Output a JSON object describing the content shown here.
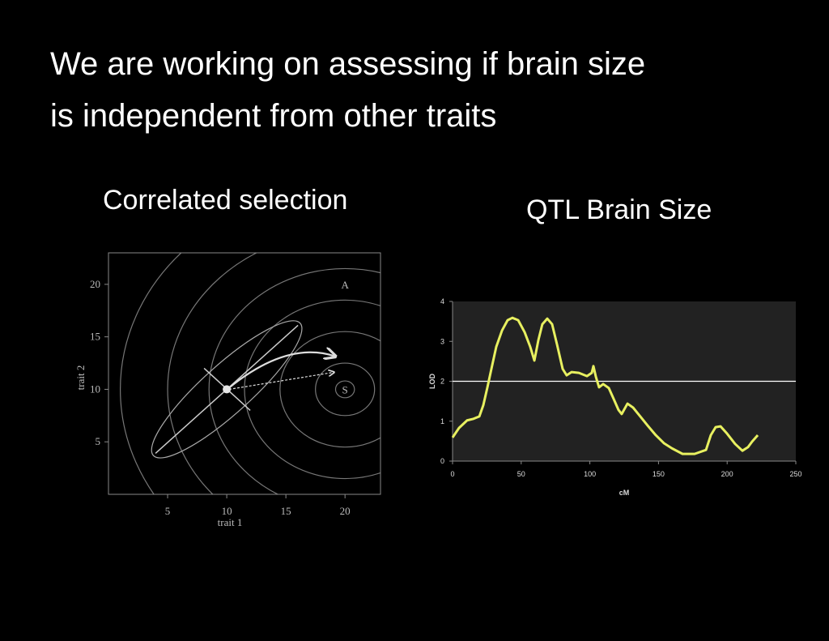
{
  "slide": {
    "title_lines": [
      "We are working on assessing if brain size",
      "is independent from other traits"
    ]
  },
  "chart_data": [
    {
      "type": "scatter",
      "title": "Correlated selection",
      "x_label": "trait 1",
      "y_label": "trait 2",
      "x": [
        10
      ],
      "values": [
        10
      ],
      "color": "#e6e6e6",
      "xlim": [
        0,
        23
      ],
      "ylim": [
        0,
        23
      ],
      "xticks": [
        5,
        10,
        15,
        20
      ],
      "yticks": [
        5,
        10,
        15,
        20
      ],
      "contour_center": [
        20,
        10
      ],
      "contours": [
        0.8,
        2.5,
        5.5,
        8.5,
        11.5,
        15,
        19
      ],
      "annotations": [
        {
          "text": "S",
          "x": 20,
          "y": 10
        },
        {
          "text": "A",
          "x": 20,
          "y": 20
        }
      ]
    },
    {
      "type": "line",
      "title": "QTL Brain Size",
      "x_label": "cM",
      "y_label": "LOD",
      "color": "#e8f060",
      "xlim": [
        0,
        250
      ],
      "ylim": [
        0,
        4
      ],
      "xticks": [
        0,
        50,
        100,
        150,
        200,
        250
      ],
      "yticks": [
        0,
        1,
        2,
        3,
        4
      ],
      "threshold": 2,
      "x": [
        0,
        4.7,
        10.6,
        15.3,
        19.5,
        22.4,
        25.4,
        28.3,
        31.8,
        36.0,
        40.1,
        43.6,
        47.8,
        52.5,
        56.6,
        59.6,
        62.5,
        65.4,
        69.0,
        72.5,
        76.1,
        80.2,
        83.1,
        86.7,
        92.0,
        97.9,
        101.4,
        102.6,
        104.4,
        106.7,
        109.7,
        113.8,
        117.3,
        120.9,
        123.2,
        127.4,
        131.5,
        136.2,
        142.1,
        148.0,
        153.9,
        159.8,
        167.5,
        176.3,
        184.6,
        188.1,
        191.6,
        195.2,
        199.9,
        205.8,
        211.1,
        215.2,
        218.2,
        222.3
      ],
      "values": [
        0.59,
        0.83,
        1.02,
        1.06,
        1.12,
        1.4,
        1.85,
        2.31,
        2.86,
        3.27,
        3.53,
        3.59,
        3.53,
        3.23,
        2.86,
        2.52,
        3.03,
        3.43,
        3.57,
        3.43,
        2.92,
        2.31,
        2.15,
        2.23,
        2.21,
        2.13,
        2.21,
        2.38,
        2.11,
        1.85,
        1.93,
        1.83,
        1.56,
        1.28,
        1.18,
        1.44,
        1.34,
        1.14,
        0.89,
        0.65,
        0.45,
        0.32,
        0.18,
        0.18,
        0.28,
        0.65,
        0.85,
        0.87,
        0.69,
        0.43,
        0.26,
        0.35,
        0.49,
        0.65
      ]
    }
  ]
}
